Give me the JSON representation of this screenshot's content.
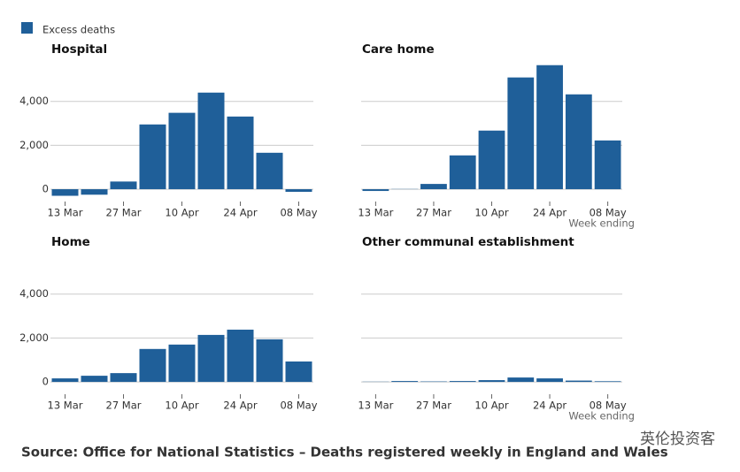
{
  "legend": {
    "label": "Excess deaths",
    "color": "#1f5f99"
  },
  "source": "Source: Office for National Statistics – Deaths registered weekly in England and Wales",
  "watermark": "英伦投资客",
  "chart_data": [
    {
      "type": "bar",
      "title": "Hospital",
      "color": "#1f5f99",
      "show_ytick_labels": true,
      "categories": [
        "13 Mar",
        null,
        "27 Mar",
        null,
        "10 Apr",
        null,
        "24 Apr",
        null,
        "08 May"
      ],
      "values": [
        -300,
        -250,
        350,
        2950,
        3480,
        4400,
        3310,
        1660,
        -120
      ],
      "ylim": [
        -400,
        5800
      ],
      "yticks": [
        0,
        {
          "value": 2000,
          "label": "2,000"
        },
        {
          "value": 4000,
          "label": "4,000"
        }
      ],
      "grid": true
    },
    {
      "type": "bar",
      "title": "Care home",
      "color": "#1f5f99",
      "show_ytick_labels": false,
      "xlabel": "Week ending",
      "categories": [
        "13 Mar",
        null,
        "27 Mar",
        null,
        "10 Apr",
        null,
        "24 Apr",
        null,
        "08 May"
      ],
      "values": [
        -80,
        10,
        240,
        1540,
        2670,
        5090,
        5650,
        4320,
        2220
      ],
      "ylim": [
        -400,
        5800
      ],
      "yticks": [
        0,
        {
          "value": 2000,
          "label": "2,000"
        },
        {
          "value": 4000,
          "label": "4,000"
        }
      ],
      "grid": true
    },
    {
      "type": "bar",
      "title": "Home",
      "color": "#1f5f99",
      "show_ytick_labels": true,
      "categories": [
        "13 Mar",
        null,
        "27 Mar",
        null,
        "10 Apr",
        null,
        "24 Apr",
        null,
        "08 May"
      ],
      "values": [
        160,
        280,
        400,
        1500,
        1700,
        2140,
        2380,
        1940,
        930
      ],
      "ylim": [
        -400,
        5800
      ],
      "yticks": [
        0,
        {
          "value": 2000,
          "label": "2,000"
        },
        {
          "value": 4000,
          "label": "4,000"
        }
      ],
      "grid": true
    },
    {
      "type": "bar",
      "title": "Other communal establishment",
      "color": "#1f5f99",
      "show_ytick_labels": false,
      "xlabel": "Week ending",
      "categories": [
        "13 Mar",
        null,
        "27 Mar",
        null,
        "10 Apr",
        null,
        "24 Apr",
        null,
        "08 May"
      ],
      "values": [
        10,
        40,
        20,
        40,
        80,
        200,
        160,
        60,
        30
      ],
      "ylim": [
        -400,
        5800
      ],
      "yticks": [
        0,
        {
          "value": 2000,
          "label": "2,000"
        },
        {
          "value": 4000,
          "label": "4,000"
        }
      ],
      "grid": true
    }
  ]
}
